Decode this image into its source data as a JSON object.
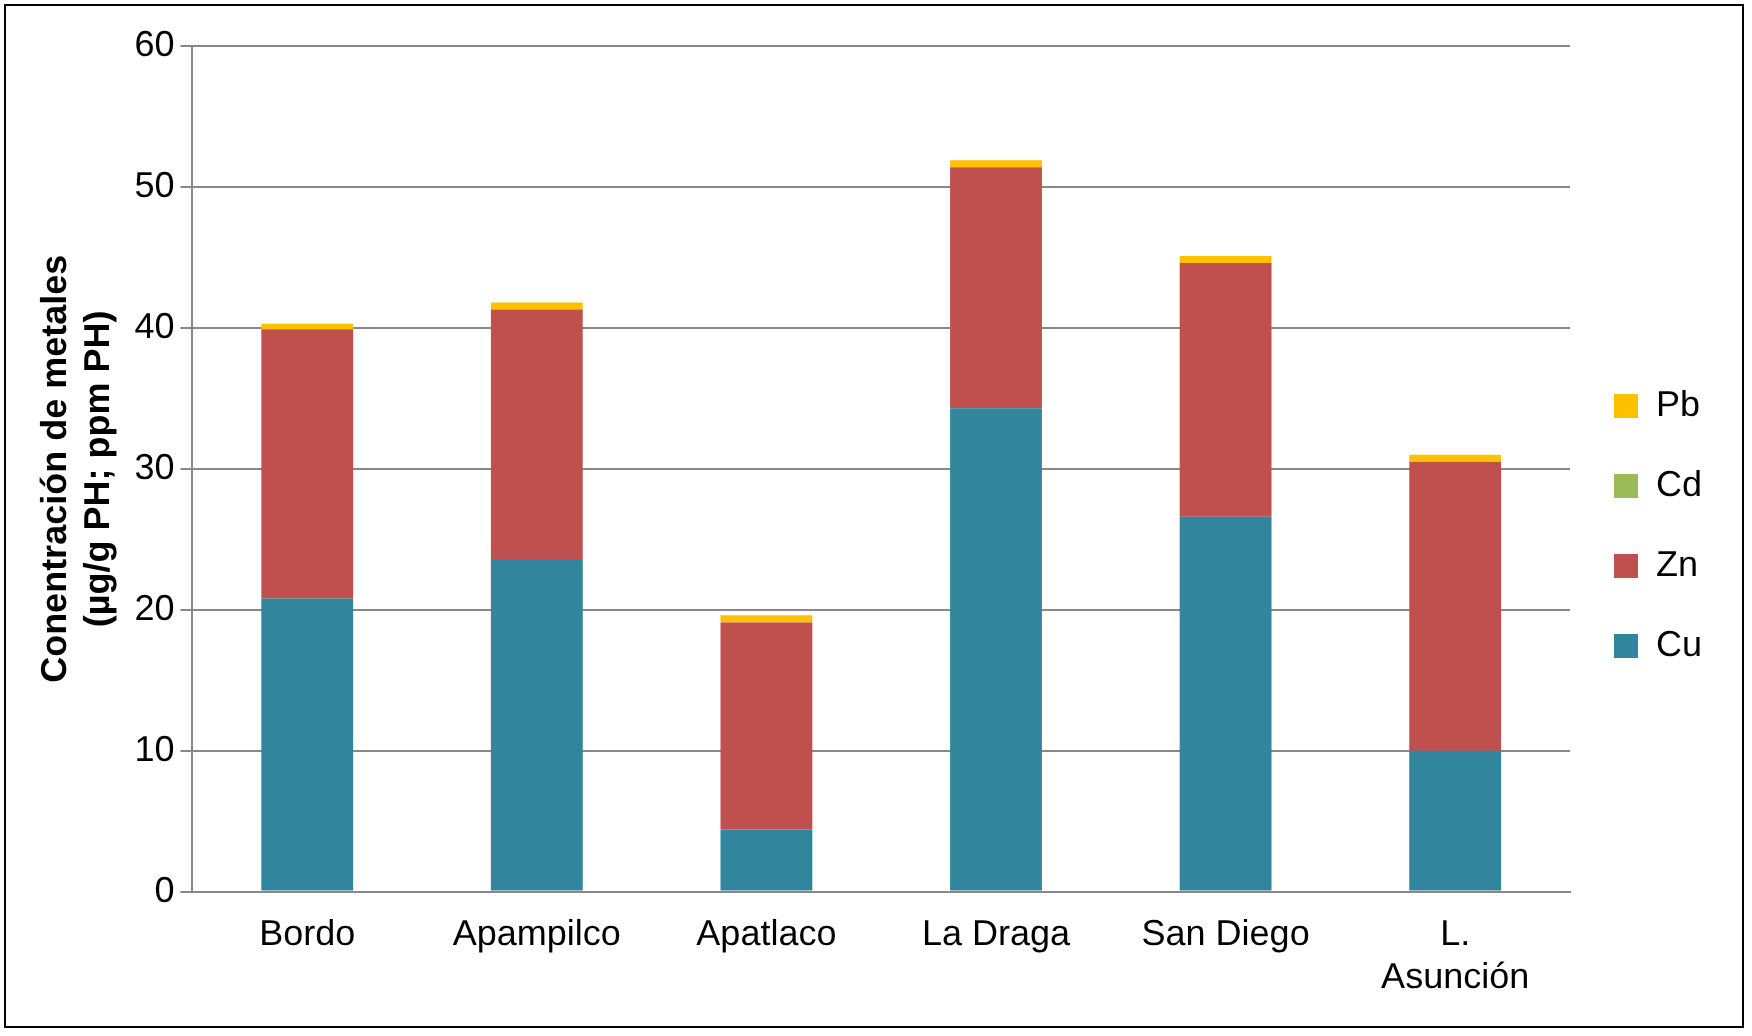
{
  "chart_data": {
    "type": "bar",
    "stacked": true,
    "ylabel": "Conentración de metales\n(µg/g PH; ppm PH)",
    "categories": [
      "Bordo",
      "Apampilco",
      "Apatlaco",
      "La Draga",
      "San Diego",
      "L.\nAsunción"
    ],
    "series": [
      {
        "name": "Cu",
        "color": "#31859c",
        "values": [
          20.8,
          23.6,
          4.4,
          34.3,
          26.6,
          10.0
        ]
      },
      {
        "name": "Zn",
        "color": "#c0504d",
        "values": [
          19.1,
          17.7,
          14.7,
          17.1,
          18.0,
          20.5
        ]
      },
      {
        "name": "Cd",
        "color": "#9bbb59",
        "values": [
          null,
          null,
          null,
          null,
          null,
          null
        ]
      },
      {
        "name": "Pb",
        "color": "#ffc000",
        "values": [
          0.4,
          0.5,
          0.5,
          0.5,
          0.5,
          0.5
        ]
      }
    ],
    "ylim": [
      0,
      60
    ],
    "yticks": [
      0,
      10,
      20,
      30,
      40,
      50,
      60
    ],
    "grid": "y",
    "legend": "right"
  }
}
